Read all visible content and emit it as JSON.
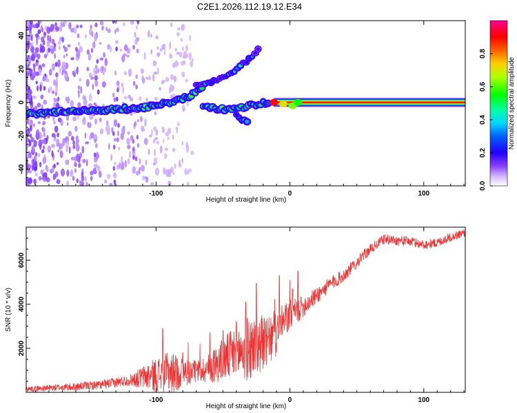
{
  "title": "C2E1.2026.112.19.12.E34",
  "chart_data": [
    {
      "type": "heatmap",
      "name": "spectrogram",
      "xlabel": "Height of straight line (km)",
      "ylabel": "Frequency (Hz)",
      "xlim": [
        -197,
        131
      ],
      "ylim": [
        -50,
        49
      ],
      "xticks": [
        -100,
        0,
        100
      ],
      "xtick_labels": [
        "-100",
        "0",
        "100"
      ],
      "yticks": [
        -40,
        -20,
        0,
        20,
        40
      ],
      "ytick_labels": [
        "-40",
        "-20",
        "0",
        "20",
        "40"
      ],
      "colorbar": {
        "label": "Normalized spectral amplitude",
        "range": [
          0,
          1
        ],
        "ticks": [
          0,
          0.2,
          0.4,
          0.6,
          0.8
        ],
        "tick_labels": [
          "0.0",
          "0.2",
          "0.4",
          "0.6",
          "0.8"
        ],
        "colors": [
          "#ffffff",
          "#b37fff",
          "#5500ff",
          "#0000ff",
          "#00c8ff",
          "#00ff90",
          "#00ff00",
          "#c8ff00",
          "#ffc800",
          "#ff4000",
          "#ff0000",
          "#ff0090"
        ]
      },
      "tracks": [
        {
          "name": "main-line",
          "x": [
            -197,
            -175,
            -150,
            -125,
            -110,
            -95,
            -85,
            -75,
            -65
          ],
          "y": [
            -7,
            -6,
            -5,
            -4,
            -3,
            -1,
            1,
            4,
            10
          ]
        },
        {
          "name": "upper-branch",
          "x": [
            -70,
            -60,
            -50,
            -40,
            -30,
            -22
          ],
          "y": [
            10,
            12,
            15,
            20,
            26,
            33
          ]
        },
        {
          "name": "lower-branch",
          "x": [
            -65,
            -55,
            -45,
            -35,
            -25,
            -15
          ],
          "y": [
            -3,
            -4,
            -4,
            -3,
            -1,
            0
          ]
        },
        {
          "name": "stray-branch",
          "x": [
            -40,
            -36,
            -32
          ],
          "y": [
            -8,
            -10,
            -12
          ]
        },
        {
          "name": "carrier",
          "x": [
            -12,
            0,
            30,
            60,
            90,
            131
          ],
          "y": [
            0,
            0,
            0,
            0,
            0,
            0
          ]
        }
      ]
    },
    {
      "type": "line",
      "name": "snr",
      "xlabel": "Height of straight line (km)",
      "ylabel": "SNR (10 * v/v)",
      "xlim": [
        -197,
        131
      ],
      "ylim": [
        0,
        7500
      ],
      "xticks": [
        -100,
        0,
        100
      ],
      "xtick_labels": [
        "-100",
        "0",
        "100"
      ],
      "yticks": [
        2000,
        4000,
        6000
      ],
      "ytick_labels": [
        "2000",
        "4000",
        "6000"
      ],
      "color": "#ee3333",
      "series": [
        {
          "name": "SNR trend",
          "x": [
            -197,
            -180,
            -160,
            -140,
            -120,
            -100,
            -80,
            -70,
            -60,
            -50,
            -40,
            -30,
            -20,
            -15,
            -10,
            -5,
            0,
            10,
            20,
            30,
            40,
            50,
            60,
            70,
            80,
            90,
            100,
            110,
            120,
            131
          ],
          "y": [
            150,
            200,
            250,
            350,
            550,
            800,
            900,
            950,
            1100,
            1500,
            1800,
            2000,
            2200,
            2300,
            2600,
            3200,
            3500,
            3900,
            4400,
            4900,
            5300,
            5900,
            6500,
            6950,
            6900,
            6850,
            6700,
            6800,
            7050,
            7250
          ]
        },
        {
          "name": "SNR noise amplitude",
          "x": [
            -197,
            -120,
            -100,
            -90,
            -80,
            -70,
            -60,
            -40,
            -30,
            -20,
            -10,
            0,
            10,
            20,
            40,
            60,
            131
          ],
          "y": [
            120,
            250,
            800,
            1000,
            700,
            500,
            700,
            1300,
            1500,
            1200,
            1000,
            700,
            500,
            400,
            300,
            250,
            200
          ]
        },
        {
          "name": "SNR spikes",
          "x": [
            -95,
            -80,
            -50,
            -40,
            -33,
            -25,
            -21,
            -15,
            -12,
            -8,
            -4,
            2,
            6,
            10
          ],
          "y": [
            2900,
            1800,
            2800,
            3200,
            4100,
            4950,
            3500,
            2600,
            3700,
            5300,
            3300,
            4700,
            5500,
            3700
          ]
        }
      ]
    }
  ]
}
